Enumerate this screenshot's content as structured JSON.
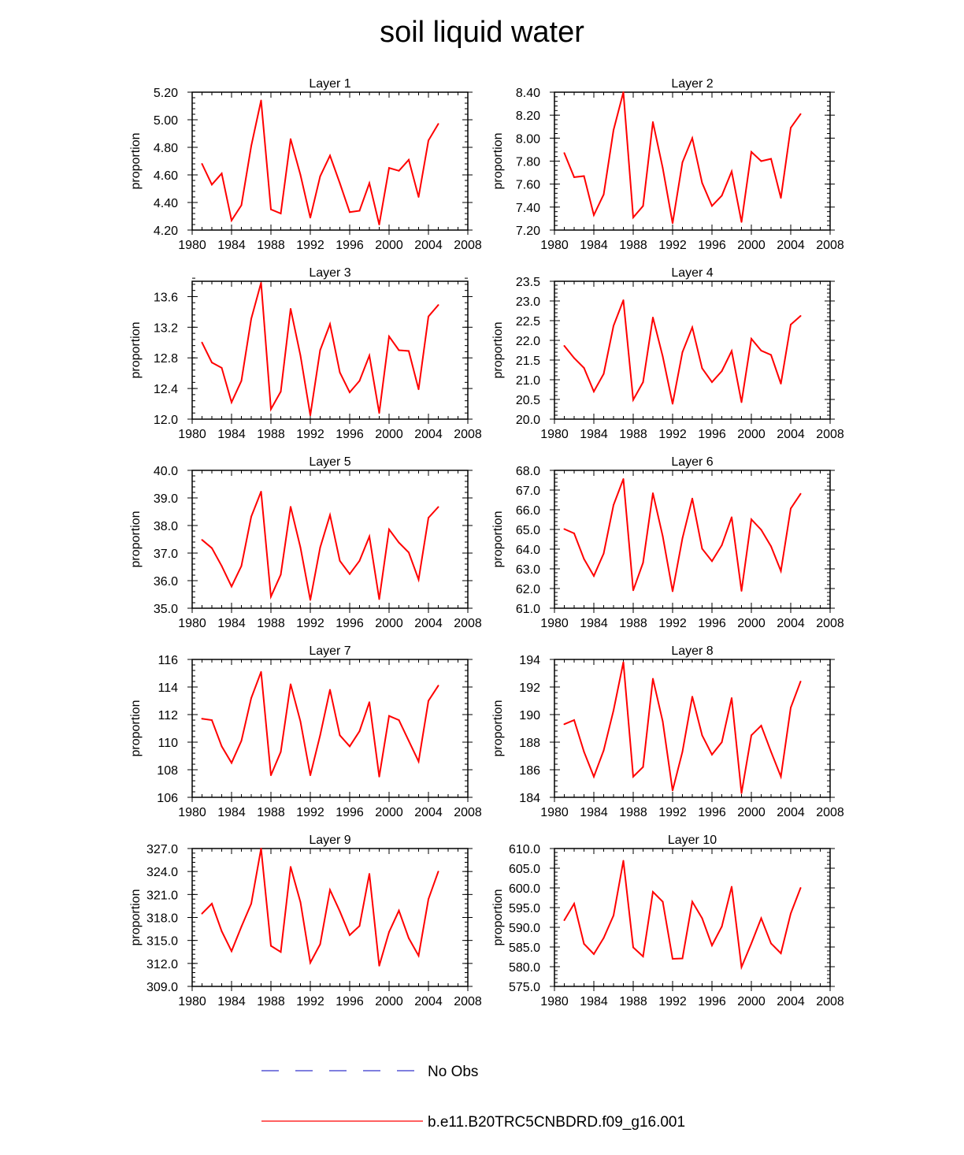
{
  "title": "soil liquid water",
  "colors": {
    "series": "#ff0000",
    "obs": "#3333cc",
    "axis": "#000000"
  },
  "legend": [
    {
      "name": "No Obs",
      "style": "dashed",
      "color": "#3333cc"
    },
    {
      "name": "b.e11.B20TRC5CNBDRD.f09_g16.001",
      "style": "solid",
      "color": "#ff0000"
    }
  ],
  "chart_data": [
    {
      "type": "line",
      "title": "Layer 1",
      "xlabel": "",
      "ylabel": "proportion",
      "xlim": [
        1980,
        2008
      ],
      "xticks": [
        "1980",
        "1984",
        "1988",
        "1992",
        "1996",
        "2000",
        "2004",
        "2008"
      ],
      "ylim": [
        4.2,
        5.2
      ],
      "yticks": [
        "4.20",
        "4.40",
        "4.60",
        "4.80",
        "5.00",
        "5.20"
      ],
      "yminor": 0.04,
      "x": [
        1981,
        1982,
        1983,
        1984,
        1985,
        1986,
        1987,
        1988,
        1989,
        1990,
        1991,
        1992,
        1993,
        1994,
        1995,
        1996,
        1997,
        1998,
        1999,
        2000,
        2001,
        2002,
        2003,
        2004,
        2005
      ],
      "series": [
        {
          "name": "b.e11.B20TRC5CNBDRD.f09_g16.001",
          "values": [
            4.68,
            4.53,
            4.61,
            4.27,
            4.38,
            4.81,
            5.14,
            4.35,
            4.32,
            4.86,
            4.6,
            4.29,
            4.59,
            4.74,
            4.54,
            4.33,
            4.34,
            4.54,
            4.24,
            4.65,
            4.63,
            4.71,
            4.44,
            4.85,
            4.97
          ]
        }
      ]
    },
    {
      "type": "line",
      "title": "Layer 2",
      "xlabel": "",
      "ylabel": "proportion",
      "xlim": [
        1980,
        2008
      ],
      "xticks": [
        "1980",
        "1984",
        "1988",
        "1992",
        "1996",
        "2000",
        "2004",
        "2008"
      ],
      "ylim": [
        7.2,
        8.4
      ],
      "yticks": [
        "7.20",
        "7.40",
        "7.60",
        "7.80",
        "8.00",
        "8.20",
        "8.40"
      ],
      "yminor": 0.04,
      "x": [
        1981,
        1982,
        1983,
        1984,
        1985,
        1986,
        1987,
        1988,
        1989,
        1990,
        1991,
        1992,
        1993,
        1994,
        1995,
        1996,
        1997,
        1998,
        1999,
        2000,
        2001,
        2002,
        2003,
        2004,
        2005
      ],
      "series": [
        {
          "name": "b.e11.B20TRC5CNBDRD.f09_g16.001",
          "values": [
            7.87,
            7.66,
            7.67,
            7.33,
            7.51,
            8.07,
            8.4,
            7.31,
            7.41,
            8.14,
            7.74,
            7.26,
            7.79,
            8.0,
            7.61,
            7.41,
            7.5,
            7.71,
            7.27,
            7.88,
            7.8,
            7.82,
            7.48,
            8.09,
            8.21
          ]
        }
      ]
    },
    {
      "type": "line",
      "title": "Layer 3",
      "xlabel": "",
      "ylabel": "proportion",
      "xlim": [
        1980,
        2008
      ],
      "xticks": [
        "1980",
        "1984",
        "1988",
        "1992",
        "1996",
        "2000",
        "2004",
        "2008"
      ],
      "ylim": [
        12.0,
        13.8
      ],
      "yticks": [
        "12.0",
        "12.4",
        "12.8",
        "13.2",
        "13.6"
      ],
      "yminor": 0.08,
      "x": [
        1981,
        1982,
        1983,
        1984,
        1985,
        1986,
        1987,
        1988,
        1989,
        1990,
        1991,
        1992,
        1993,
        1994,
        1995,
        1996,
        1997,
        1998,
        1999,
        2000,
        2001,
        2002,
        2003,
        2004,
        2005
      ],
      "series": [
        {
          "name": "b.e11.B20TRC5CNBDRD.f09_g16.001",
          "values": [
            13.0,
            12.74,
            12.67,
            12.22,
            12.5,
            13.31,
            13.78,
            12.13,
            12.36,
            13.44,
            12.83,
            12.05,
            12.9,
            13.24,
            12.61,
            12.35,
            12.5,
            12.83,
            12.08,
            13.08,
            12.9,
            12.89,
            12.39,
            13.34,
            13.49
          ]
        }
      ]
    },
    {
      "type": "line",
      "title": "Layer 4",
      "xlabel": "",
      "ylabel": "proportion",
      "xlim": [
        1980,
        2008
      ],
      "xticks": [
        "1980",
        "1984",
        "1988",
        "1992",
        "1996",
        "2000",
        "2004",
        "2008"
      ],
      "ylim": [
        20.0,
        23.5
      ],
      "yticks": [
        "20.0",
        "20.5",
        "21.0",
        "21.5",
        "22.0",
        "22.5",
        "23.0",
        "23.5"
      ],
      "yminor": 0.1,
      "x": [
        1981,
        1982,
        1983,
        1984,
        1985,
        1986,
        1987,
        1988,
        1989,
        1990,
        1991,
        1992,
        1993,
        1994,
        1995,
        1996,
        1997,
        1998,
        1999,
        2000,
        2001,
        2002,
        2003,
        2004,
        2005
      ],
      "series": [
        {
          "name": "b.e11.B20TRC5CNBDRD.f09_g16.001",
          "values": [
            21.86,
            21.55,
            21.3,
            20.7,
            21.15,
            22.37,
            23.02,
            20.49,
            20.94,
            22.58,
            21.59,
            20.39,
            21.7,
            22.33,
            21.29,
            20.94,
            21.22,
            21.73,
            20.43,
            22.04,
            21.74,
            21.63,
            20.9,
            22.4,
            22.62
          ]
        }
      ]
    },
    {
      "type": "line",
      "title": "Layer 5",
      "xlabel": "",
      "ylabel": "proportion",
      "xlim": [
        1980,
        2008
      ],
      "xticks": [
        "1980",
        "1984",
        "1988",
        "1992",
        "1996",
        "2000",
        "2004",
        "2008"
      ],
      "ylim": [
        35.0,
        40.0
      ],
      "yticks": [
        "35.0",
        "36.0",
        "37.0",
        "38.0",
        "39.0",
        "40.0"
      ],
      "yminor": 0.2,
      "x": [
        1981,
        1982,
        1983,
        1984,
        1985,
        1986,
        1987,
        1988,
        1989,
        1990,
        1991,
        1992,
        1993,
        1994,
        1995,
        1996,
        1997,
        1998,
        1999,
        2000,
        2001,
        2002,
        2003,
        2004,
        2005
      ],
      "series": [
        {
          "name": "b.e11.B20TRC5CNBDRD.f09_g16.001",
          "values": [
            37.48,
            37.18,
            36.53,
            35.79,
            36.53,
            38.32,
            39.23,
            35.42,
            36.22,
            38.68,
            37.2,
            35.3,
            37.2,
            38.38,
            36.72,
            36.24,
            36.72,
            37.6,
            35.33,
            37.86,
            37.38,
            37.02,
            36.04,
            38.28,
            38.67
          ]
        }
      ]
    },
    {
      "type": "line",
      "title": "Layer 6",
      "xlabel": "",
      "ylabel": "proportion",
      "xlim": [
        1980,
        2008
      ],
      "xticks": [
        "1980",
        "1984",
        "1988",
        "1992",
        "1996",
        "2000",
        "2004",
        "2008"
      ],
      "ylim": [
        61.0,
        68.0
      ],
      "yticks": [
        "61.0",
        "62.0",
        "63.0",
        "64.0",
        "65.0",
        "66.0",
        "67.0",
        "68.0"
      ],
      "yminor": 0.2,
      "x": [
        1981,
        1982,
        1983,
        1984,
        1985,
        1986,
        1987,
        1988,
        1989,
        1990,
        1991,
        1992,
        1993,
        1994,
        1995,
        1996,
        1997,
        1998,
        1999,
        2000,
        2001,
        2002,
        2003,
        2004,
        2005
      ],
      "series": [
        {
          "name": "b.e11.B20TRC5CNBDRD.f09_g16.001",
          "values": [
            65.02,
            64.8,
            63.5,
            62.64,
            63.78,
            66.24,
            67.56,
            61.91,
            63.31,
            66.84,
            64.65,
            61.86,
            64.55,
            66.57,
            64.02,
            63.39,
            64.2,
            65.62,
            61.88,
            65.51,
            64.98,
            64.14,
            62.89,
            66.06,
            66.81
          ]
        }
      ]
    },
    {
      "type": "line",
      "title": "Layer 7",
      "xlabel": "",
      "ylabel": "proportion",
      "xlim": [
        1980,
        2008
      ],
      "xticks": [
        "1980",
        "1984",
        "1988",
        "1992",
        "1996",
        "2000",
        "2004",
        "2008"
      ],
      "ylim": [
        106,
        116
      ],
      "yticks": [
        "106",
        "108",
        "110",
        "112",
        "114",
        "116"
      ],
      "yminor": 0.4,
      "x": [
        1981,
        1982,
        1983,
        1984,
        1985,
        1986,
        1987,
        1988,
        1989,
        1990,
        1991,
        1992,
        1993,
        1994,
        1995,
        1996,
        1997,
        1998,
        1999,
        2000,
        2001,
        2002,
        2003,
        2004,
        2005
      ],
      "series": [
        {
          "name": "b.e11.B20TRC5CNBDRD.f09_g16.001",
          "values": [
            111.7,
            111.6,
            109.7,
            108.5,
            110.1,
            113.2,
            115.1,
            107.6,
            109.3,
            114.2,
            111.5,
            107.6,
            110.5,
            113.8,
            110.5,
            109.7,
            110.8,
            112.9,
            107.5,
            111.9,
            111.6,
            110.1,
            108.6,
            113.0,
            114.1
          ]
        }
      ]
    },
    {
      "type": "line",
      "title": "Layer 8",
      "xlabel": "",
      "ylabel": "proportion",
      "xlim": [
        1980,
        2008
      ],
      "xticks": [
        "1980",
        "1984",
        "1988",
        "1992",
        "1996",
        "2000",
        "2004",
        "2008"
      ],
      "ylim": [
        184,
        194
      ],
      "yticks": [
        "184",
        "186",
        "188",
        "190",
        "192",
        "194"
      ],
      "yminor": 0.4,
      "x": [
        1981,
        1982,
        1983,
        1984,
        1985,
        1986,
        1987,
        1988,
        1989,
        1990,
        1991,
        1992,
        1993,
        1994,
        1995,
        1996,
        1997,
        1998,
        1999,
        2000,
        2001,
        2002,
        2003,
        2004,
        2005
      ],
      "series": [
        {
          "name": "b.e11.B20TRC5CNBDRD.f09_g16.001",
          "values": [
            189.3,
            189.6,
            187.3,
            185.5,
            187.4,
            190.3,
            193.8,
            185.5,
            186.2,
            192.6,
            189.5,
            184.5,
            187.3,
            191.3,
            188.5,
            187.1,
            188.0,
            191.2,
            184.3,
            188.5,
            189.2,
            187.3,
            185.5,
            190.5,
            192.4
          ]
        }
      ]
    },
    {
      "type": "line",
      "title": "Layer 9",
      "xlabel": "",
      "ylabel": "proportion",
      "xlim": [
        1980,
        2008
      ],
      "xticks": [
        "1980",
        "1984",
        "1988",
        "1992",
        "1996",
        "2000",
        "2004",
        "2008"
      ],
      "ylim": [
        309.0,
        327.0
      ],
      "yticks": [
        "309.0",
        "312.0",
        "315.0",
        "318.0",
        "321.0",
        "324.0",
        "327.0"
      ],
      "yminor": 0.6,
      "x": [
        1981,
        1982,
        1983,
        1984,
        1985,
        1986,
        1987,
        1988,
        1989,
        1990,
        1991,
        1992,
        1993,
        1994,
        1995,
        1996,
        1997,
        1998,
        1999,
        2000,
        2001,
        2002,
        2003,
        2004,
        2005
      ],
      "series": [
        {
          "name": "b.e11.B20TRC5CNBDRD.f09_g16.001",
          "values": [
            318.5,
            319.8,
            316.2,
            313.6,
            316.8,
            319.8,
            327.0,
            314.3,
            313.5,
            324.6,
            320.0,
            312.1,
            314.5,
            321.6,
            318.8,
            315.7,
            316.9,
            323.7,
            311.7,
            316.1,
            318.9,
            315.3,
            313.0,
            320.4,
            324.0
          ]
        }
      ]
    },
    {
      "type": "line",
      "title": "Layer 10",
      "xlabel": "",
      "ylabel": "proportion",
      "xlim": [
        1980,
        2008
      ],
      "xticks": [
        "1980",
        "1984",
        "1988",
        "1992",
        "1996",
        "2000",
        "2004",
        "2008"
      ],
      "ylim": [
        575.0,
        610.0
      ],
      "yticks": [
        "575.0",
        "580.0",
        "585.0",
        "590.0",
        "595.0",
        "600.0",
        "605.0",
        "610.0"
      ],
      "yminor": 1,
      "x": [
        1981,
        1982,
        1983,
        1984,
        1985,
        1986,
        1987,
        1988,
        1989,
        1990,
        1991,
        1992,
        1993,
        1994,
        1995,
        1996,
        1997,
        1998,
        1999,
        2000,
        2001,
        2002,
        2003,
        2004,
        2005
      ],
      "series": [
        {
          "name": "b.e11.B20TRC5CNBDRD.f09_g16.001",
          "values": [
            591.8,
            596.0,
            585.8,
            583.2,
            587.3,
            593.0,
            606.9,
            584.9,
            582.6,
            599.0,
            596.5,
            582.0,
            582.1,
            596.5,
            592.3,
            585.4,
            590.2,
            600.3,
            579.9,
            585.9,
            592.3,
            585.9,
            583.4,
            593.5,
            600.0
          ]
        }
      ]
    }
  ]
}
